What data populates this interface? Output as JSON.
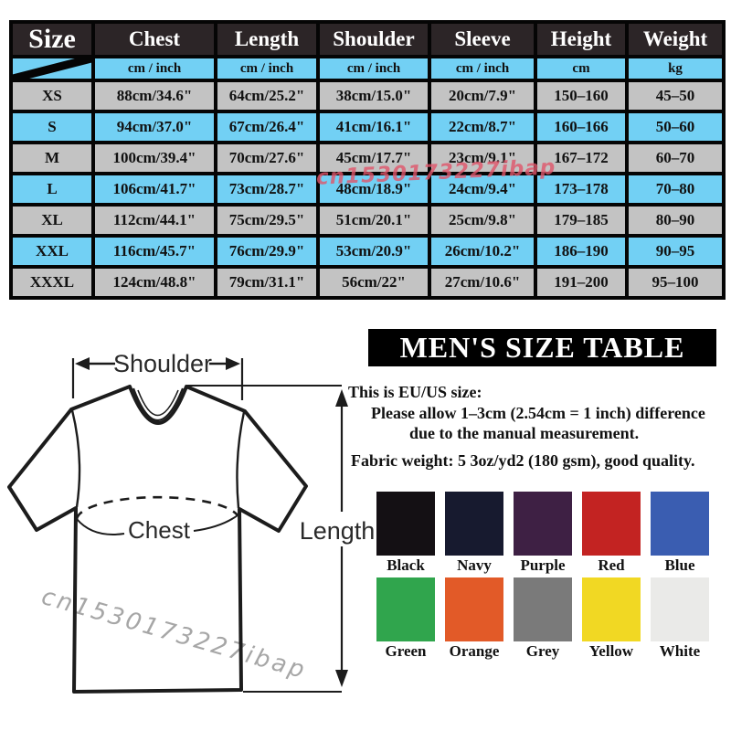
{
  "size_table": {
    "columns": [
      "Size",
      "Chest",
      "Length",
      "Shoulder",
      "Sleeve",
      "Height",
      "Weight"
    ],
    "units": [
      "",
      "cm / inch",
      "cm / inch",
      "cm / inch",
      "cm / inch",
      "cm",
      "kg"
    ],
    "rows": [
      [
        "XS",
        "88cm/34.6\"",
        "64cm/25.2\"",
        "38cm/15.0\"",
        "20cm/7.9\"",
        "150–160",
        "45–50"
      ],
      [
        "S",
        "94cm/37.0\"",
        "67cm/26.4\"",
        "41cm/16.1\"",
        "22cm/8.7\"",
        "160–166",
        "50–60"
      ],
      [
        "M",
        "100cm/39.4\"",
        "70cm/27.6\"",
        "45cm/17.7\"",
        "23cm/9.1\"",
        "167–172",
        "60–70"
      ],
      [
        "L",
        "106cm/41.7\"",
        "73cm/28.7\"",
        "48cm/18.9\"",
        "24cm/9.4\"",
        "173–178",
        "70–80"
      ],
      [
        "XL",
        "112cm/44.1\"",
        "75cm/29.5\"",
        "51cm/20.1\"",
        "25cm/9.8\"",
        "179–185",
        "80–90"
      ],
      [
        "XXL",
        "116cm/45.7\"",
        "76cm/29.9\"",
        "53cm/20.9\"",
        "26cm/10.2\"",
        "186–190",
        "90–95"
      ],
      [
        "XXXL",
        "124cm/48.8\"",
        "79cm/31.1\"",
        "56cm/22\"",
        "27cm/10.6\"",
        "191–200",
        "95–100"
      ]
    ]
  },
  "watermark": {
    "text": "cn1530173227ibap"
  },
  "panel": {
    "title": "MEN'S SIZE TABLE",
    "note_line1": "This is EU/US size:",
    "note_line2": "Please allow 1–3cm (2.54cm = 1 inch) difference",
    "note_line3": "due to the manual measurement.",
    "note_line4": "Fabric weight: 5 3oz/yd2 (180 gsm), good quality."
  },
  "diagram": {
    "shoulder_label": "Shoulder",
    "chest_label": "Chest",
    "length_label": "Length"
  },
  "colors": {
    "rows": [
      [
        {
          "name": "Black",
          "hex": "#141014"
        },
        {
          "name": "Navy",
          "hex": "#171a2f"
        },
        {
          "name": "Purple",
          "hex": "#3e2044"
        },
        {
          "name": "Red",
          "hex": "#c32322"
        },
        {
          "name": "Blue",
          "hex": "#3a5db1"
        }
      ],
      [
        {
          "name": "Green",
          "hex": "#30a54d"
        },
        {
          "name": "Orange",
          "hex": "#e25a28"
        },
        {
          "name": "Grey",
          "hex": "#7a7a7a"
        },
        {
          "name": "Yellow",
          "hex": "#f1d823"
        },
        {
          "name": "White",
          "hex": "#eaeae8"
        }
      ]
    ]
  },
  "theme": {
    "header_bg": "#2c2527",
    "row_blue": "#72d0f4",
    "row_grey": "#c3c3c3",
    "banner_bg": "#000000",
    "watermark_red": "#e0566b",
    "watermark_grey": "#a6a6a6"
  }
}
